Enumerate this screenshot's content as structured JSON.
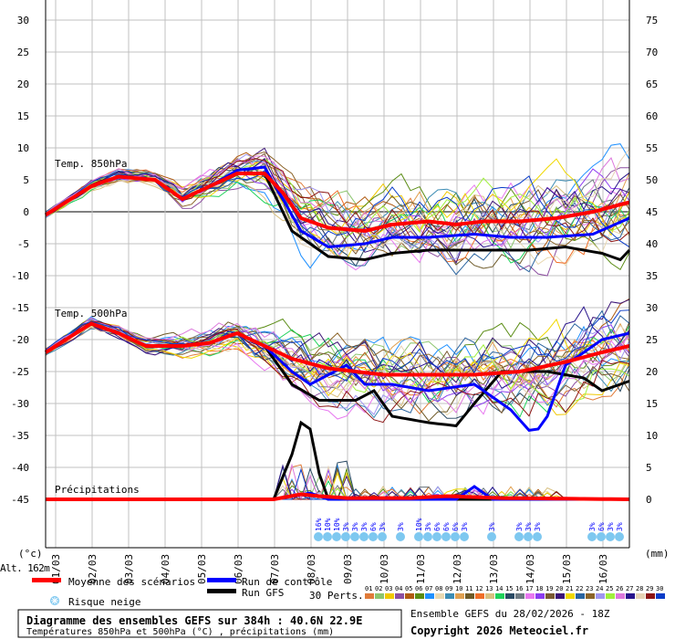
{
  "labels": {
    "t850": "Temp. 850hPa",
    "t500": "Temp. 500hPa",
    "precip": "Précipitations",
    "unit_left": "(°c)",
    "unit_right": "(mm)",
    "alt": "Alt. 162m"
  },
  "legend": {
    "mean": "Moyenne des scénarios",
    "control": "Run de contrôle",
    "gfs": "Run GFS",
    "snow": "Risque neige",
    "perts": "30 Perts."
  },
  "title_box": {
    "title": "Diagramme des ensembles GEFS sur 384h : 40.6N 22.9E",
    "subtitle": "Températures 850hPa et 500hPa (°C) , précipitations (mm)"
  },
  "run_info": "Ensemble GEFS du 28/02/2026 - 18Z",
  "copyright": "Copyright 2026 Meteociel.fr",
  "colors": {
    "mean": "#ff0000",
    "control": "#0000ff",
    "gfs": "#000000",
    "grid": "#c0c0c0"
  },
  "perturbations": [
    {
      "id": "01",
      "color": "#e07b39"
    },
    {
      "id": "02",
      "color": "#8cc56e"
    },
    {
      "id": "03",
      "color": "#f0c800"
    },
    {
      "id": "04",
      "color": "#8c4ea0"
    },
    {
      "id": "05",
      "color": "#b05a10"
    },
    {
      "id": "06",
      "color": "#5a8c14"
    },
    {
      "id": "07",
      "color": "#1e90ff"
    },
    {
      "id": "08",
      "color": "#e8d8b0"
    },
    {
      "id": "09",
      "color": "#3c8cb4"
    },
    {
      "id": "10",
      "color": "#e0a050"
    },
    {
      "id": "11",
      "color": "#6e5a28"
    },
    {
      "id": "12",
      "color": "#f06e28"
    },
    {
      "id": "13",
      "color": "#d8c080"
    },
    {
      "id": "14",
      "color": "#1ed25a"
    },
    {
      "id": "15",
      "color": "#2a4a64"
    },
    {
      "id": "16",
      "color": "#6e7a82"
    },
    {
      "id": "17",
      "color": "#e878f0"
    },
    {
      "id": "18",
      "color": "#8c3cf0"
    },
    {
      "id": "19",
      "color": "#7a5a32"
    },
    {
      "id": "20",
      "color": "#3c1478"
    },
    {
      "id": "21",
      "color": "#f0d800"
    },
    {
      "id": "22",
      "color": "#2a64a0"
    },
    {
      "id": "23",
      "color": "#8c6428"
    },
    {
      "id": "24",
      "color": "#a096f0"
    },
    {
      "id": "25",
      "color": "#a0f03c"
    },
    {
      "id": "26",
      "color": "#dc78dc"
    },
    {
      "id": "27",
      "color": "#28148c"
    },
    {
      "id": "28",
      "color": "#e6d2b4"
    },
    {
      "id": "29",
      "color": "#8c1414"
    },
    {
      "id": "30",
      "color": "#0a3cc8"
    }
  ],
  "chart_data": {
    "type": "line",
    "x_unit": "hours from 28/02 18Z, step 6h",
    "x_range": [
      0,
      384
    ],
    "x_ticks": [
      "01/03",
      "02/03",
      "03/03",
      "04/03",
      "05/03",
      "06/03",
      "07/03",
      "08/03",
      "09/03",
      "10/03",
      "11/03",
      "12/03",
      "13/03",
      "14/03",
      "15/03",
      "16/03"
    ],
    "y_left": {
      "label": "(°c)",
      "range": [
        -45,
        30
      ],
      "ticks": [
        30,
        25,
        20,
        15,
        10,
        5,
        0,
        -5,
        -10,
        -15,
        -20,
        -25,
        -30,
        -35,
        -40,
        -45
      ]
    },
    "y_right": {
      "label": "(mm)",
      "range": [
        0,
        75
      ],
      "ticks": [
        75,
        70,
        65,
        60,
        55,
        50,
        45,
        40,
        35,
        30,
        25,
        20,
        15,
        10,
        5,
        0
      ]
    },
    "series": {
      "t850": {
        "mean": [
          [
            0,
            -0.5
          ],
          [
            30,
            4
          ],
          [
            48,
            5.5
          ],
          [
            72,
            5
          ],
          [
            90,
            2
          ],
          [
            108,
            4
          ],
          [
            126,
            6
          ],
          [
            144,
            6
          ],
          [
            156,
            3
          ],
          [
            168,
            -1
          ],
          [
            186,
            -2.5
          ],
          [
            210,
            -3
          ],
          [
            228,
            -2
          ],
          [
            252,
            -1.5
          ],
          [
            270,
            -2
          ],
          [
            288,
            -1.5
          ],
          [
            312,
            -1.5
          ],
          [
            336,
            -1
          ],
          [
            360,
            0
          ],
          [
            384,
            1.5
          ]
        ],
        "control": [
          [
            0,
            -0.5
          ],
          [
            30,
            4
          ],
          [
            48,
            5.5
          ],
          [
            72,
            5
          ],
          [
            90,
            2
          ],
          [
            108,
            4
          ],
          [
            126,
            6.5
          ],
          [
            144,
            7
          ],
          [
            156,
            2
          ],
          [
            168,
            -3
          ],
          [
            186,
            -5.5
          ],
          [
            210,
            -5
          ],
          [
            228,
            -4
          ],
          [
            252,
            -4
          ],
          [
            282,
            -3.5
          ],
          [
            306,
            -4
          ],
          [
            330,
            -4
          ],
          [
            360,
            -3.5
          ],
          [
            384,
            -1
          ]
        ],
        "gfs": [
          [
            0,
            -0.5
          ],
          [
            30,
            4
          ],
          [
            48,
            5.5
          ],
          [
            72,
            5
          ],
          [
            90,
            2
          ],
          [
            108,
            4
          ],
          [
            126,
            6
          ],
          [
            144,
            6
          ],
          [
            162,
            -3
          ],
          [
            186,
            -7
          ],
          [
            210,
            -7.5
          ],
          [
            228,
            -6.5
          ],
          [
            252,
            -6
          ],
          [
            288,
            -6
          ],
          [
            318,
            -6
          ],
          [
            342,
            -5.5
          ],
          [
            366,
            -6.5
          ],
          [
            378,
            -7.5
          ],
          [
            384,
            -6
          ]
        ],
        "spread": [
          [
            0,
            0.5
          ],
          [
            72,
            1
          ],
          [
            126,
            2
          ],
          [
            168,
            4
          ],
          [
            240,
            5
          ],
          [
            384,
            6
          ]
        ]
      },
      "t500": {
        "mean": [
          [
            0,
            -22
          ],
          [
            30,
            -17.5
          ],
          [
            48,
            -19
          ],
          [
            66,
            -21
          ],
          [
            90,
            -21
          ],
          [
            108,
            -20.5
          ],
          [
            126,
            -19
          ],
          [
            144,
            -21
          ],
          [
            162,
            -23
          ],
          [
            186,
            -24.5
          ],
          [
            222,
            -25.5
          ],
          [
            252,
            -25.5
          ],
          [
            282,
            -25.5
          ],
          [
            312,
            -25
          ],
          [
            342,
            -23.5
          ],
          [
            366,
            -22
          ],
          [
            384,
            -21
          ]
        ],
        "control": [
          [
            0,
            -22
          ],
          [
            30,
            -17.5
          ],
          [
            48,
            -19
          ],
          [
            66,
            -21
          ],
          [
            90,
            -21
          ],
          [
            108,
            -20.5
          ],
          [
            126,
            -19
          ],
          [
            144,
            -21
          ],
          [
            162,
            -25
          ],
          [
            174,
            -27
          ],
          [
            198,
            -24
          ],
          [
            210,
            -27
          ],
          [
            228,
            -27
          ],
          [
            252,
            -28
          ],
          [
            282,
            -27
          ],
          [
            306,
            -31
          ],
          [
            321,
            -35
          ],
          [
            330,
            -32
          ],
          [
            342,
            -24
          ],
          [
            366,
            -20
          ],
          [
            384,
            -19
          ]
        ],
        "gfs": [
          [
            0,
            -22
          ],
          [
            30,
            -17.5
          ],
          [
            48,
            -19
          ],
          [
            66,
            -21
          ],
          [
            90,
            -21
          ],
          [
            108,
            -20.5
          ],
          [
            126,
            -19
          ],
          [
            144,
            -21
          ],
          [
            162,
            -27
          ],
          [
            180,
            -29.5
          ],
          [
            204,
            -29.5
          ],
          [
            216,
            -28
          ],
          [
            228,
            -32
          ],
          [
            252,
            -33
          ],
          [
            270,
            -33.5
          ],
          [
            282,
            -30
          ],
          [
            300,
            -25
          ],
          [
            330,
            -25
          ],
          [
            354,
            -26
          ],
          [
            366,
            -28
          ],
          [
            384,
            -26.5
          ]
        ],
        "spread": [
          [
            0,
            0.5
          ],
          [
            72,
            1
          ],
          [
            126,
            2
          ],
          [
            168,
            4
          ],
          [
            240,
            5
          ],
          [
            384,
            6
          ]
        ]
      },
      "precip": {
        "mean": [
          [
            0,
            0
          ],
          [
            150,
            0
          ],
          [
            168,
            0.8
          ],
          [
            180,
            0.5
          ],
          [
            198,
            0.2
          ],
          [
            240,
            0.2
          ],
          [
            264,
            0.5
          ],
          [
            300,
            0.2
          ],
          [
            384,
            0
          ]
        ],
        "control": [
          [
            0,
            0
          ],
          [
            150,
            0
          ],
          [
            162,
            0.5
          ],
          [
            174,
            1
          ],
          [
            186,
            0
          ],
          [
            270,
            0
          ],
          [
            282,
            2
          ],
          [
            294,
            0
          ],
          [
            384,
            0
          ]
        ],
        "gfs": [
          [
            0,
            0
          ],
          [
            150,
            0
          ],
          [
            162,
            7
          ],
          [
            168,
            12
          ],
          [
            174,
            11
          ],
          [
            180,
            4
          ],
          [
            186,
            0
          ],
          [
            384,
            0
          ]
        ]
      }
    },
    "snow_risk": [
      {
        "h": 180,
        "p": "16%"
      },
      {
        "h": 186,
        "p": "10%"
      },
      {
        "h": 192,
        "p": "10%"
      },
      {
        "h": 198,
        "p": "3%"
      },
      {
        "h": 204,
        "p": "3%"
      },
      {
        "h": 210,
        "p": "3%"
      },
      {
        "h": 216,
        "p": "6%"
      },
      {
        "h": 222,
        "p": "3%"
      },
      {
        "h": 234,
        "p": "3%"
      },
      {
        "h": 246,
        "p": "10%"
      },
      {
        "h": 252,
        "p": "3%"
      },
      {
        "h": 258,
        "p": "6%"
      },
      {
        "h": 264,
        "p": "6%"
      },
      {
        "h": 270,
        "p": "6%"
      },
      {
        "h": 276,
        "p": "3%"
      },
      {
        "h": 294,
        "p": "3%"
      },
      {
        "h": 312,
        "p": "3%"
      },
      {
        "h": 318,
        "p": "3%"
      },
      {
        "h": 324,
        "p": "3%"
      },
      {
        "h": 360,
        "p": "3%"
      },
      {
        "h": 366,
        "p": "6%"
      },
      {
        "h": 372,
        "p": "3%"
      },
      {
        "h": 378,
        "p": "3%"
      }
    ]
  }
}
